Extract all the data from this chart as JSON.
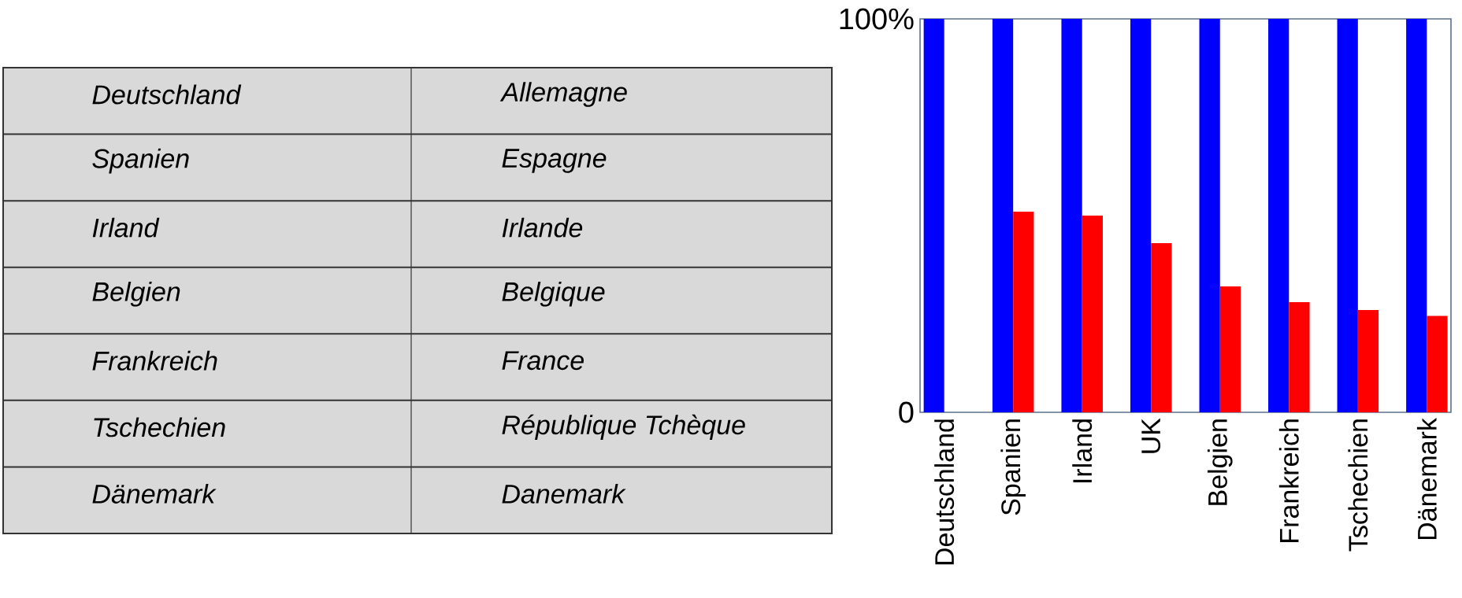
{
  "chart_data": [
    {
      "type": "other",
      "annotations": [
        "Deutschland",
        "Allemagne",
        "Spanien",
        "Espagne",
        "Irland",
        "Irlande",
        "Belgien",
        "Belgique",
        "Frankreich",
        "France",
        "Tschechien",
        "République Tchèque",
        "Dänemark",
        "Danemark"
      ]
    },
    {
      "type": "bar",
      "categories": [
        "Deutschland",
        "Spanien",
        "Irland",
        "UK",
        "Belgien",
        "Frankreich",
        "Tschechien",
        "Dänemark"
      ],
      "series": [
        {
          "color": "#0000ff",
          "values": [
            100,
            100,
            100,
            100,
            100,
            100,
            100,
            100
          ]
        },
        {
          "color": "#ff0000",
          "values": [
            null,
            51,
            50,
            43,
            32,
            28,
            26,
            24.5
          ]
        }
      ],
      "ylim": [
        0,
        100
      ],
      "yticks": [
        0,
        {
          "value": 100,
          "label": "100%"
        }
      ]
    }
  ]
}
